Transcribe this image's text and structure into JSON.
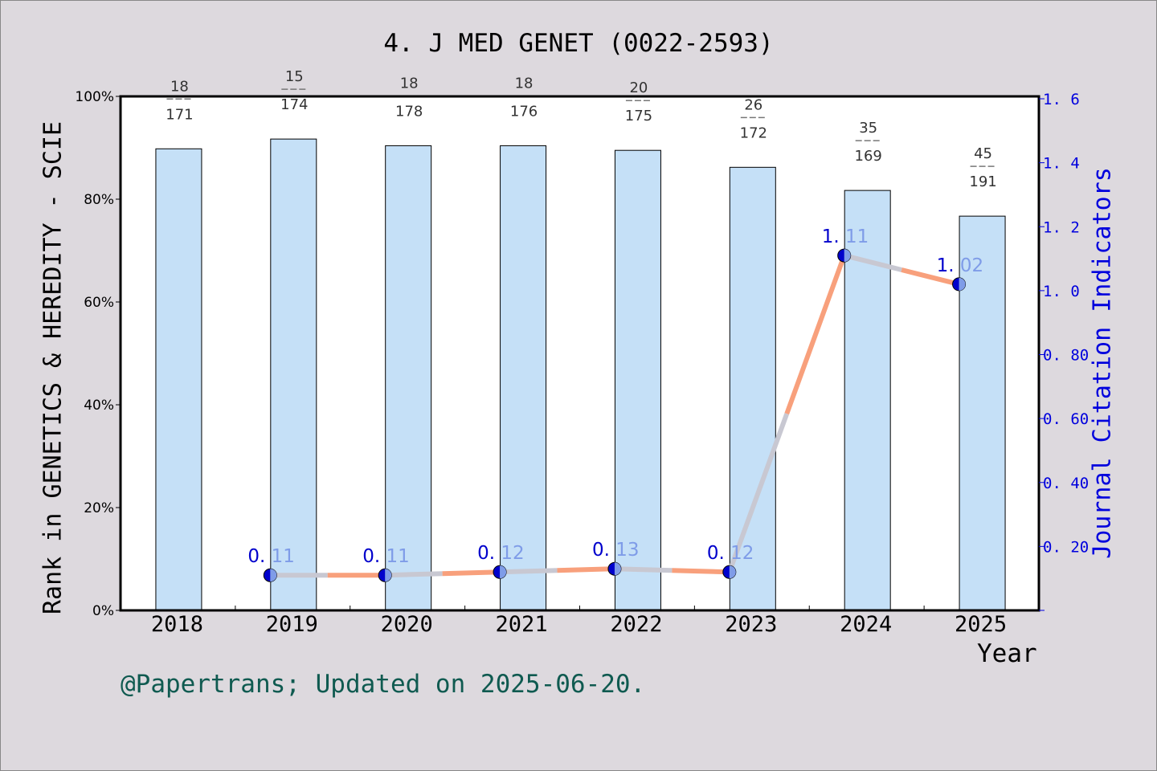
{
  "chart_data": {
    "type": "bar+line",
    "title": "4. J MED GENET (0022-2593)",
    "xlabel": "Year",
    "ylabel_left": "Rank in GENETICS & HEREDITY - SCIE",
    "ylabel_right": "Journal Citation Indicators",
    "categories": [
      "2018",
      "2019",
      "2020",
      "2021",
      "2022",
      "2023",
      "2024",
      "2025"
    ],
    "left_axis": {
      "ticks": [
        "0%",
        "20%",
        "40%",
        "60%",
        "80%",
        "100%"
      ],
      "ylim": [
        0,
        100
      ]
    },
    "right_axis": {
      "ticks": [
        "0.20",
        "0.40",
        "0.60",
        "0.80",
        "1.0",
        "1.2",
        "1.4",
        "1.6"
      ],
      "ylim": [
        0,
        1.6
      ]
    },
    "series": [
      {
        "name": "Rank percentile",
        "type": "bar",
        "axis": "left",
        "color": "#c5e0f7",
        "values": [
          89.8,
          91.7,
          90.4,
          90.4,
          89.5,
          86.2,
          81.7,
          76.7
        ],
        "labels": [
          {
            "rank": "18",
            "total": "171"
          },
          {
            "rank": "15",
            "total": "174"
          },
          {
            "rank": "18",
            "total": "178"
          },
          {
            "rank": "18",
            "total": "176"
          },
          {
            "rank": "20",
            "total": "175"
          },
          {
            "rank": "26",
            "total": "172"
          },
          {
            "rank": "35",
            "total": "169"
          },
          {
            "rank": "45",
            "total": "191"
          }
        ]
      },
      {
        "name": "JCI",
        "type": "line",
        "axis": "right",
        "color": "#f8a07c",
        "values": [
          null,
          0.11,
          0.11,
          0.12,
          0.13,
          0.12,
          1.11,
          1.02
        ],
        "labels": [
          null,
          "0.11",
          "0.11",
          "0.12",
          "0.13",
          "0.12",
          "1.11",
          "1.02"
        ]
      }
    ],
    "annotation": "@Papertrans; Updated on 2025-06-20.",
    "grid": false,
    "legend": "none"
  },
  "colors": {
    "background": "#ddd9de",
    "plot_bg": "#ffffff",
    "bar_fill": "#c5e0f7",
    "line_main": "#f8a07c",
    "line_shadow": "#c8c8d2",
    "marker_dark": "#0000cc",
    "marker_light": "#7f9ce8",
    "right_axis": "#0000dd",
    "credit": "#0f5a50"
  }
}
